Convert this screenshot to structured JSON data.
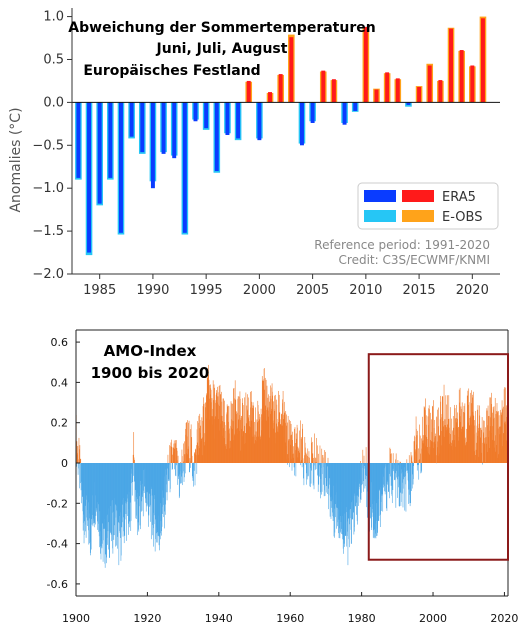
{
  "chart_data": [
    {
      "type": "bar",
      "title_lines": [
        "Abweichung der Sommertemperaturen",
        "Juni, Juli, August",
        "Europäisches Festland"
      ],
      "ylabel": "Anomalies (°C)",
      "xlabel": "",
      "xlim": [
        1982.4,
        2022.6
      ],
      "ylim": [
        -2.0,
        1.1
      ],
      "xticks": [
        1985,
        1990,
        1995,
        2000,
        2005,
        2010,
        2015,
        2020
      ],
      "yticks": [
        1.0,
        0.5,
        0.0,
        -0.5,
        -1.0,
        -1.5,
        -2.0
      ],
      "ytick_labels": [
        "1.0",
        "0.5",
        "0.0",
        "−0.5",
        "−1.0",
        "−1.5",
        "−2.0"
      ],
      "colors": {
        "era5_pos": "#ff1a1a",
        "era5_neg": "#0a3cff",
        "eobs_pos": "#ffa31a",
        "eobs_neg": "#26c6f5"
      },
      "legend": {
        "position": "lower-right",
        "labels": [
          "ERA5",
          "E-OBS"
        ]
      },
      "annotation": [
        "Reference period: 1991-2020",
        "Credit: C3S/ECWMF/KNMI"
      ],
      "x": [
        1983,
        1984,
        1985,
        1986,
        1987,
        1988,
        1989,
        1990,
        1991,
        1992,
        1993,
        1994,
        1995,
        1996,
        1997,
        1998,
        1999,
        2000,
        2001,
        2002,
        2003,
        2004,
        2005,
        2006,
        2007,
        2008,
        2009,
        2010,
        2011,
        2012,
        2013,
        2014,
        2015,
        2016,
        2017,
        2018,
        2019,
        2020,
        2021
      ],
      "series": [
        {
          "name": "ERA5",
          "values": [
            -0.88,
            -1.75,
            -1.18,
            -0.88,
            -1.52,
            -0.4,
            -0.58,
            -1.0,
            -0.6,
            -0.65,
            -1.52,
            -0.22,
            -0.3,
            -0.8,
            -0.38,
            -0.42,
            0.25,
            -0.44,
            0.12,
            0.33,
            0.76,
            -0.5,
            -0.24,
            0.37,
            0.27,
            -0.26,
            -0.1,
            0.88,
            0.15,
            0.35,
            0.28,
            -0.03,
            0.18,
            0.43,
            0.26,
            0.86,
            0.61,
            0.43,
            0.98
          ]
        },
        {
          "name": "E-OBS",
          "values": [
            -0.9,
            -1.78,
            -1.2,
            -0.9,
            -1.54,
            -0.42,
            -0.6,
            -0.92,
            -0.58,
            -0.62,
            -1.54,
            -0.2,
            -0.32,
            -0.82,
            -0.36,
            -0.44,
            0.24,
            -0.42,
            0.11,
            0.32,
            0.79,
            -0.48,
            -0.22,
            0.36,
            0.26,
            -0.24,
            -0.11,
            0.86,
            0.16,
            0.34,
            0.27,
            -0.05,
            0.19,
            0.45,
            0.25,
            0.87,
            0.6,
            0.42,
            1.0
          ]
        }
      ]
    },
    {
      "type": "bar",
      "title_lines": [
        "AMO-Index",
        "1900 bis 2020"
      ],
      "xlabel": "",
      "ylabel": "",
      "xlim": [
        1900,
        2021
      ],
      "ylim": [
        -0.66,
        0.66
      ],
      "xticks": [
        1900,
        1920,
        1940,
        1960,
        1980,
        2000,
        2020
      ],
      "yticks": [
        0.6,
        0.4,
        0.2,
        0,
        -0.2,
        -0.4,
        -0.6
      ],
      "colors": {
        "positive": "#f07a2a",
        "negative": "#4aa6e6",
        "highlight_box": "#8b1a1a"
      },
      "highlight_box": {
        "x_range": [
          1982,
          2021
        ],
        "y_range": [
          -0.48,
          0.54
        ]
      },
      "annual_x": [
        1900,
        1901,
        1902,
        1903,
        1904,
        1905,
        1906,
        1907,
        1908,
        1909,
        1910,
        1911,
        1912,
        1913,
        1914,
        1915,
        1916,
        1917,
        1918,
        1919,
        1920,
        1921,
        1922,
        1923,
        1924,
        1925,
        1926,
        1927,
        1928,
        1929,
        1930,
        1931,
        1932,
        1933,
        1934,
        1935,
        1936,
        1937,
        1938,
        1939,
        1940,
        1941,
        1942,
        1943,
        1944,
        1945,
        1946,
        1947,
        1948,
        1949,
        1950,
        1951,
        1952,
        1953,
        1954,
        1955,
        1956,
        1957,
        1958,
        1959,
        1960,
        1961,
        1962,
        1963,
        1964,
        1965,
        1966,
        1967,
        1968,
        1969,
        1970,
        1971,
        1972,
        1973,
        1974,
        1975,
        1976,
        1977,
        1978,
        1979,
        1980,
        1981,
        1982,
        1983,
        1984,
        1985,
        1986,
        1987,
        1988,
        1989,
        1990,
        1991,
        1992,
        1993,
        1994,
        1995,
        1996,
        1997,
        1998,
        1999,
        2000,
        2001,
        2002,
        2003,
        2004,
        2005,
        2006,
        2007,
        2008,
        2009,
        2010,
        2011,
        2012,
        2013,
        2014,
        2015,
        2016,
        2017,
        2018,
        2019,
        2020
      ],
      "annual_values": [
        0.12,
        -0.05,
        -0.25,
        -0.3,
        -0.35,
        -0.18,
        -0.2,
        -0.38,
        -0.4,
        -0.35,
        -0.32,
        -0.28,
        -0.4,
        -0.3,
        -0.25,
        -0.28,
        0.05,
        -0.3,
        -0.22,
        -0.12,
        -0.2,
        -0.25,
        -0.3,
        -0.35,
        -0.28,
        -0.15,
        -0.05,
        0.02,
        -0.02,
        -0.1,
        0.0,
        0.1,
        0.08,
        -0.05,
        0.12,
        0.15,
        0.22,
        0.35,
        0.3,
        0.25,
        0.3,
        0.2,
        0.15,
        0.18,
        0.25,
        0.3,
        0.2,
        0.18,
        0.28,
        0.22,
        0.15,
        0.2,
        0.3,
        0.35,
        0.25,
        0.28,
        0.2,
        0.24,
        0.22,
        0.1,
        0.12,
        0.05,
        0.08,
        0.1,
        0.0,
        0.05,
        -0.02,
        0.02,
        -0.05,
        -0.02,
        -0.05,
        -0.15,
        -0.25,
        -0.2,
        -0.3,
        -0.32,
        -0.38,
        -0.3,
        -0.25,
        -0.2,
        -0.05,
        -0.02,
        -0.25,
        -0.22,
        -0.3,
        -0.2,
        -0.15,
        -0.1,
        -0.05,
        -0.08,
        -0.1,
        -0.12,
        -0.15,
        -0.1,
        -0.05,
        0.1,
        0.05,
        0.1,
        0.2,
        0.15,
        0.18,
        0.12,
        0.2,
        0.25,
        0.22,
        0.18,
        0.15,
        0.25,
        0.22,
        0.18,
        0.3,
        0.25,
        0.12,
        0.18,
        0.1,
        0.15,
        0.22,
        0.2,
        0.15,
        0.2,
        0.25
      ]
    }
  ]
}
